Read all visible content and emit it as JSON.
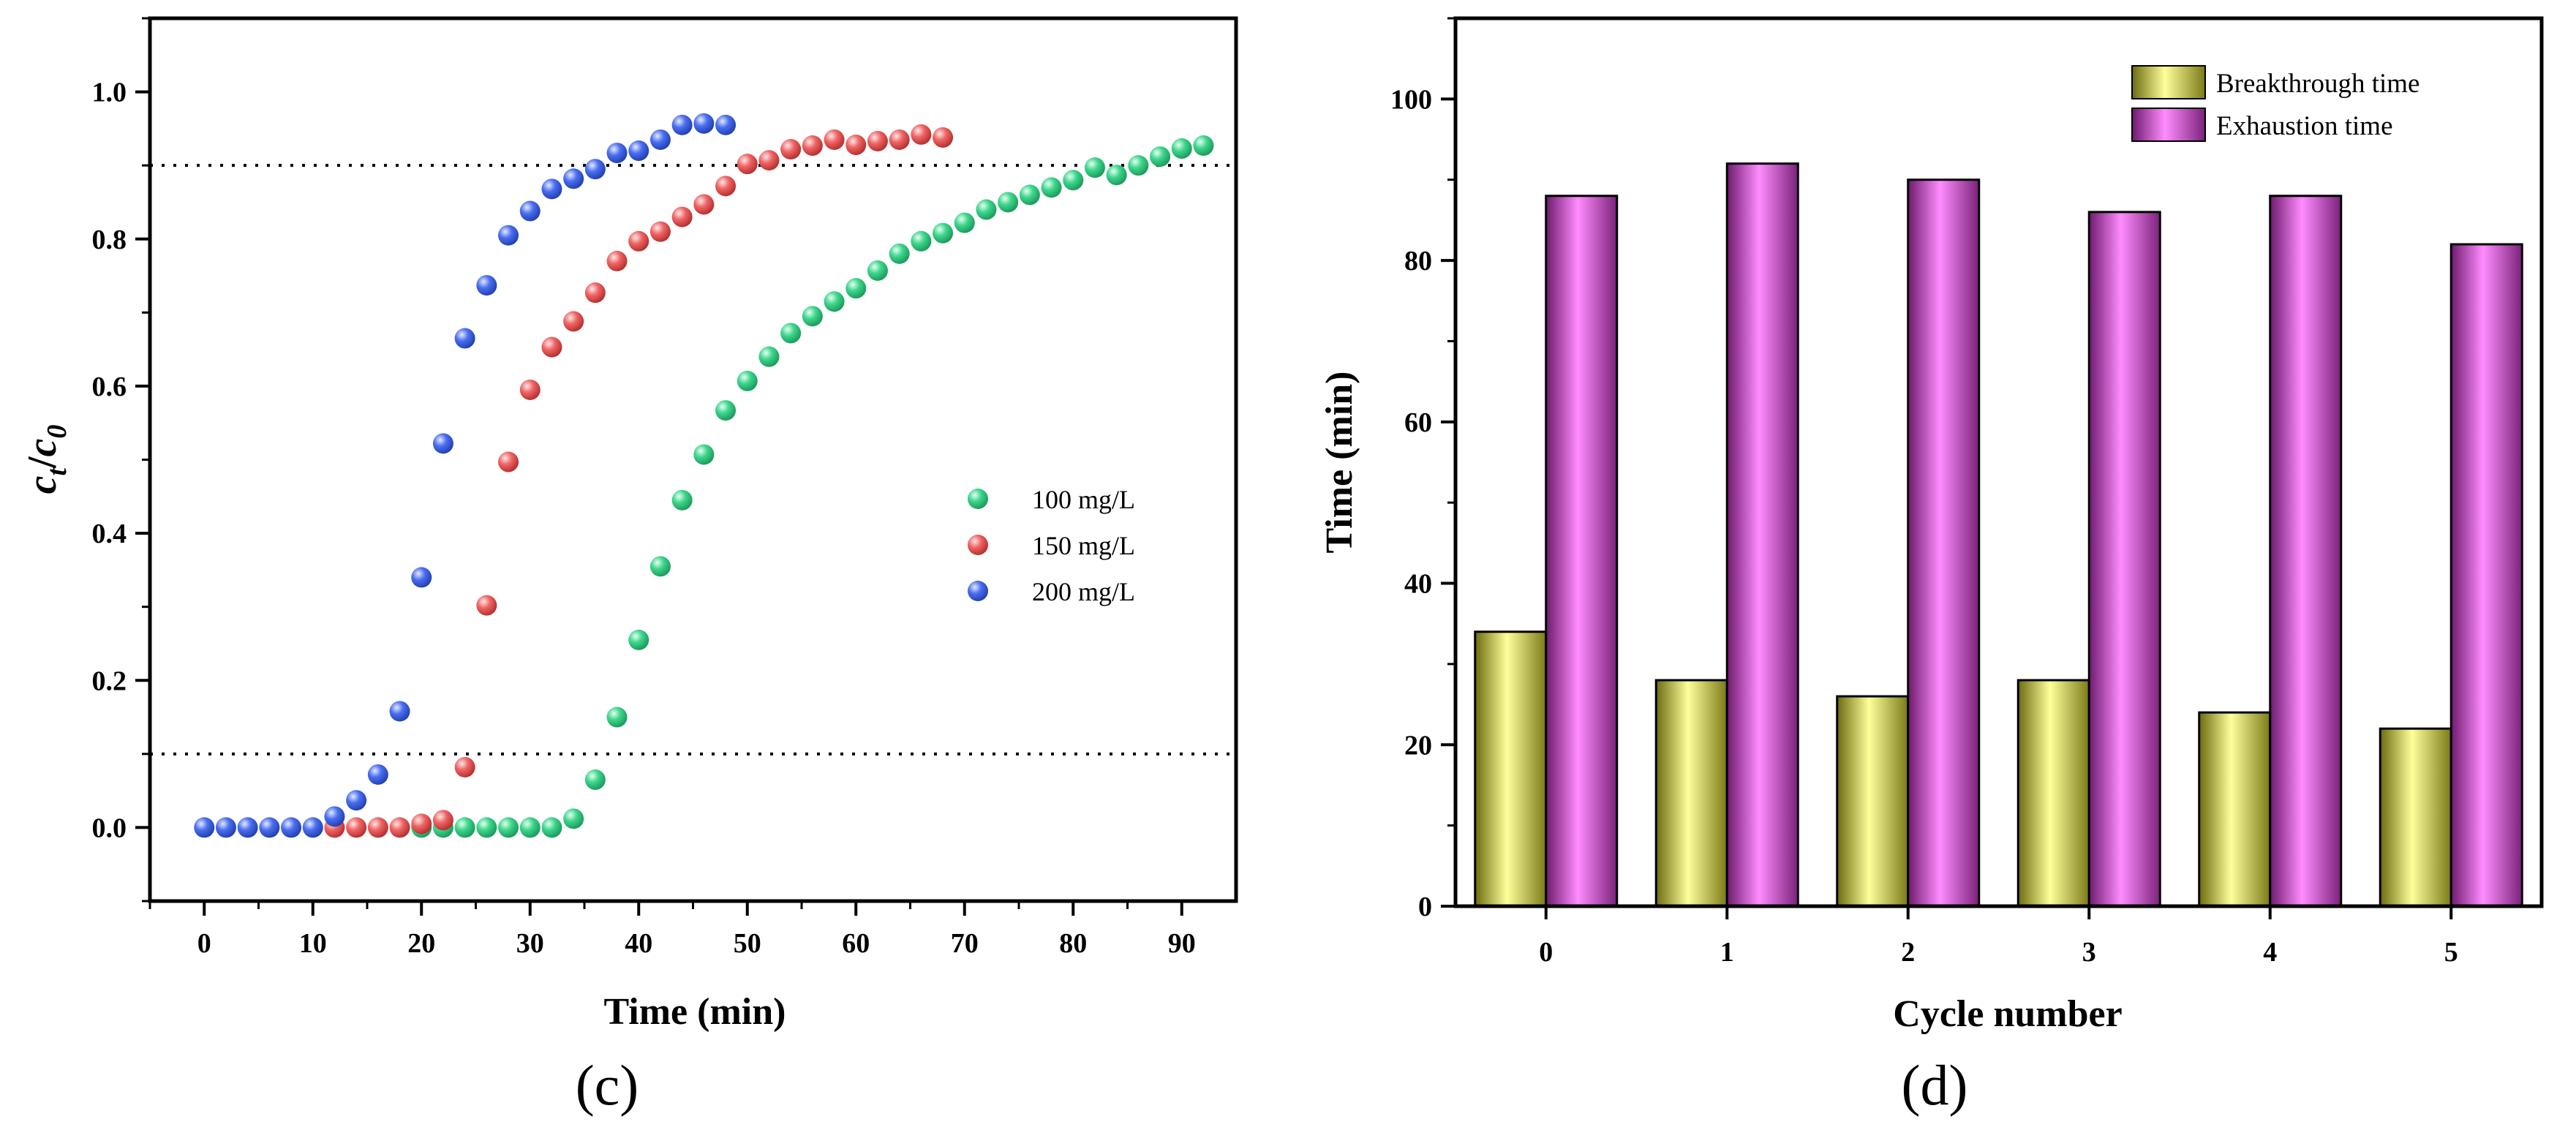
{
  "chart_data": [
    {
      "type": "scatter",
      "panel_label": "(c)",
      "xlabel": "Time (min)",
      "ylabel": {
        "base1": "c",
        "sub1": "t",
        "slash": "/",
        "base2": "c",
        "sub2": "0"
      },
      "xlim": [
        -5,
        95
      ],
      "ylim": [
        -0.1,
        1.1
      ],
      "xticks": [
        "0",
        "10",
        "20",
        "30",
        "40",
        "50",
        "60",
        "70",
        "80",
        "90"
      ],
      "yticks": [
        "0.0",
        "0.2",
        "0.4",
        "0.6",
        "0.8",
        "1.0"
      ],
      "reference_lines": [
        0.1,
        0.9
      ],
      "series": [
        {
          "name": "100 mg/L",
          "color": "#3dd68c",
          "x": [
            20,
            22,
            24,
            26,
            28,
            30,
            32,
            34,
            36,
            38,
            40,
            42,
            44,
            46,
            48,
            50,
            52,
            54,
            56,
            58,
            60,
            62,
            64,
            66,
            68,
            70,
            72,
            74,
            76,
            78,
            80,
            82,
            84,
            86,
            88,
            90,
            92
          ],
          "y": [
            0,
            0,
            0,
            0,
            0,
            0,
            0,
            0.012,
            0.065,
            0.15,
            0.255,
            0.355,
            0.445,
            0.507,
            0.567,
            0.607,
            0.64,
            0.672,
            0.695,
            0.715,
            0.733,
            0.757,
            0.78,
            0.797,
            0.808,
            0.822,
            0.84,
            0.85,
            0.86,
            0.87,
            0.88,
            0.897,
            0.887,
            0.9,
            0.912,
            0.923,
            0.927
          ]
        },
        {
          "name": "150 mg/L",
          "color": "#f06464",
          "x": [
            12,
            14,
            16,
            18,
            20,
            22,
            24,
            26,
            28,
            30,
            32,
            34,
            36,
            38,
            40,
            42,
            44,
            46,
            48,
            50,
            52,
            54,
            56,
            58,
            60,
            62,
            64,
            66,
            68
          ],
          "y": [
            0,
            0,
            0,
            0,
            0.005,
            0.01,
            0.082,
            0.302,
            0.497,
            0.595,
            0.653,
            0.688,
            0.727,
            0.77,
            0.797,
            0.81,
            0.83,
            0.847,
            0.872,
            0.902,
            0.907,
            0.922,
            0.927,
            0.935,
            0.928,
            0.933,
            0.935,
            0.942,
            0.938
          ]
        },
        {
          "name": "200 mg/L",
          "color": "#4a6ef0",
          "x": [
            0,
            2,
            4,
            6,
            8,
            10,
            12,
            14,
            16,
            18,
            20,
            22,
            24,
            26,
            28,
            30,
            32,
            34,
            36,
            38,
            40,
            42,
            44,
            46,
            48
          ],
          "y": [
            0,
            0,
            0,
            0,
            0,
            0,
            0.015,
            0.037,
            0.072,
            0.158,
            0.34,
            0.522,
            0.665,
            0.737,
            0.805,
            0.838,
            0.868,
            0.882,
            0.895,
            0.917,
            0.92,
            0.935,
            0.955,
            0.957,
            0.955
          ]
        }
      ]
    },
    {
      "type": "bar",
      "panel_label": "(d)",
      "xlabel": "Cycle number",
      "ylabel": "Time (min)",
      "ylim": [
        0,
        110
      ],
      "categories": [
        "0",
        "1",
        "2",
        "3",
        "4",
        "5"
      ],
      "yticks": [
        "0",
        "20",
        "40",
        "60",
        "80",
        "100"
      ],
      "series": [
        {
          "name": "Breakthrough time",
          "color": "#f7f77a",
          "values": [
            34,
            28,
            26,
            28,
            24,
            22
          ]
        },
        {
          "name": "Exhaustion time",
          "color": "#f56ef5",
          "values": [
            88,
            92,
            90,
            86,
            88,
            82
          ]
        }
      ]
    }
  ]
}
